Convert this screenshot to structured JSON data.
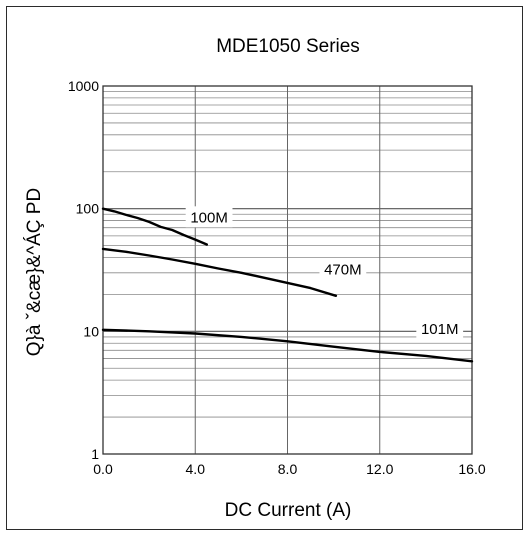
{
  "chart_data": {
    "type": "line",
    "title": "MDE1050 Series",
    "xlabel": "DC Current (A)",
    "ylabel": "Q}à ˇ&cæ}&^ÁÇ  PD",
    "xlim": [
      0,
      16
    ],
    "ylim": [
      1,
      1000
    ],
    "yscale": "log",
    "x_ticks": [
      0,
      4,
      8,
      12,
      16
    ],
    "x_tick_labels": [
      "0.0",
      "4.0",
      "8.0",
      "12.0",
      "16.0"
    ],
    "y_ticks": [
      1,
      10,
      100,
      1000
    ],
    "y_tick_labels": [
      "1",
      "10",
      "100",
      "1000"
    ],
    "grid": true,
    "series": [
      {
        "name": "100M",
        "x": [
          0,
          0.5,
          1,
          1.5,
          2,
          2.5,
          3,
          3.5,
          4,
          4.5
        ],
        "y": [
          100,
          95,
          89,
          84,
          78,
          71,
          67,
          61,
          56,
          51
        ]
      },
      {
        "name": "470M",
        "x": [
          0,
          1,
          2,
          3,
          4,
          5,
          6,
          7,
          8,
          9,
          10.1
        ],
        "y": [
          47,
          44.5,
          41.5,
          38.5,
          35.5,
          32.5,
          30,
          27.3,
          24.8,
          22.5,
          19.5
        ]
      },
      {
        "name": "101M",
        "x": [
          0,
          2,
          4,
          6,
          8,
          10,
          12,
          14,
          16
        ],
        "y": [
          10.3,
          10,
          9.6,
          9,
          8.3,
          7.5,
          6.8,
          6.3,
          5.7
        ]
      }
    ],
    "series_label_positions": [
      {
        "name": "100M",
        "x": 4.6,
        "y": 85
      },
      {
        "name": "470M",
        "x": 10.4,
        "y": 32
      },
      {
        "name": "101M",
        "x": 14.6,
        "y": 10.4
      }
    ]
  }
}
